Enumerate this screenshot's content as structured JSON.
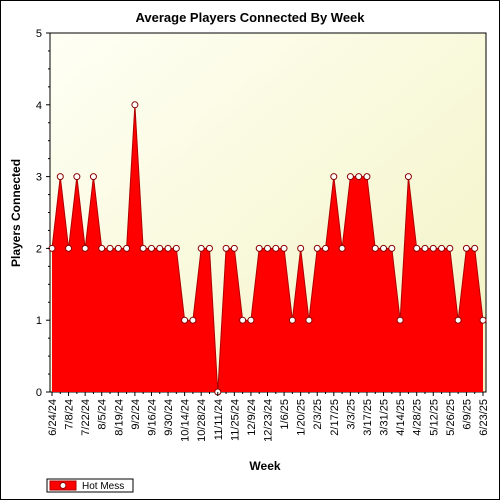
{
  "chart_data": {
    "type": "area",
    "title": "Average Players Connected By Week",
    "xlabel": "Week",
    "ylabel": "Players Connected",
    "ylim": [
      0,
      5
    ],
    "y_ticks": [
      0,
      1,
      2,
      3,
      4,
      5
    ],
    "grid": false,
    "legend_position": "bottom-left",
    "colors": {
      "fill": "#ff0000",
      "line": "#b00000",
      "marker_fill": "#ffffff",
      "marker_stroke": "#8b0000",
      "plot_bg_light": "#fffff0",
      "plot_bg_dark": "#f5f5c8"
    },
    "x_tick_labels": [
      "6/24/24",
      "7/8/24",
      "7/22/24",
      "8/5/24",
      "8/19/24",
      "9/2/24",
      "9/16/24",
      "9/30/24",
      "10/14/24",
      "10/28/24",
      "11/11/24",
      "11/25/24",
      "12/9/24",
      "12/23/24",
      "1/6/25",
      "1/20/25",
      "2/3/25",
      "2/17/25",
      "3/3/25",
      "3/17/25",
      "3/31/25",
      "4/14/25",
      "4/28/25",
      "5/12/25",
      "5/26/25",
      "6/9/25",
      "6/23/25"
    ],
    "series": [
      {
        "name": "Hot Mess",
        "values": [
          2,
          3,
          2,
          3,
          2,
          3,
          2,
          2,
          2,
          2,
          4,
          2,
          2,
          2,
          2,
          2,
          1,
          1,
          2,
          2,
          0,
          2,
          2,
          1,
          1,
          2,
          2,
          2,
          2,
          1,
          2,
          1,
          2,
          2,
          3,
          2,
          3,
          3,
          3,
          2,
          2,
          2,
          1,
          3,
          2,
          2,
          2,
          2,
          2,
          1,
          2,
          2,
          1
        ]
      }
    ]
  }
}
